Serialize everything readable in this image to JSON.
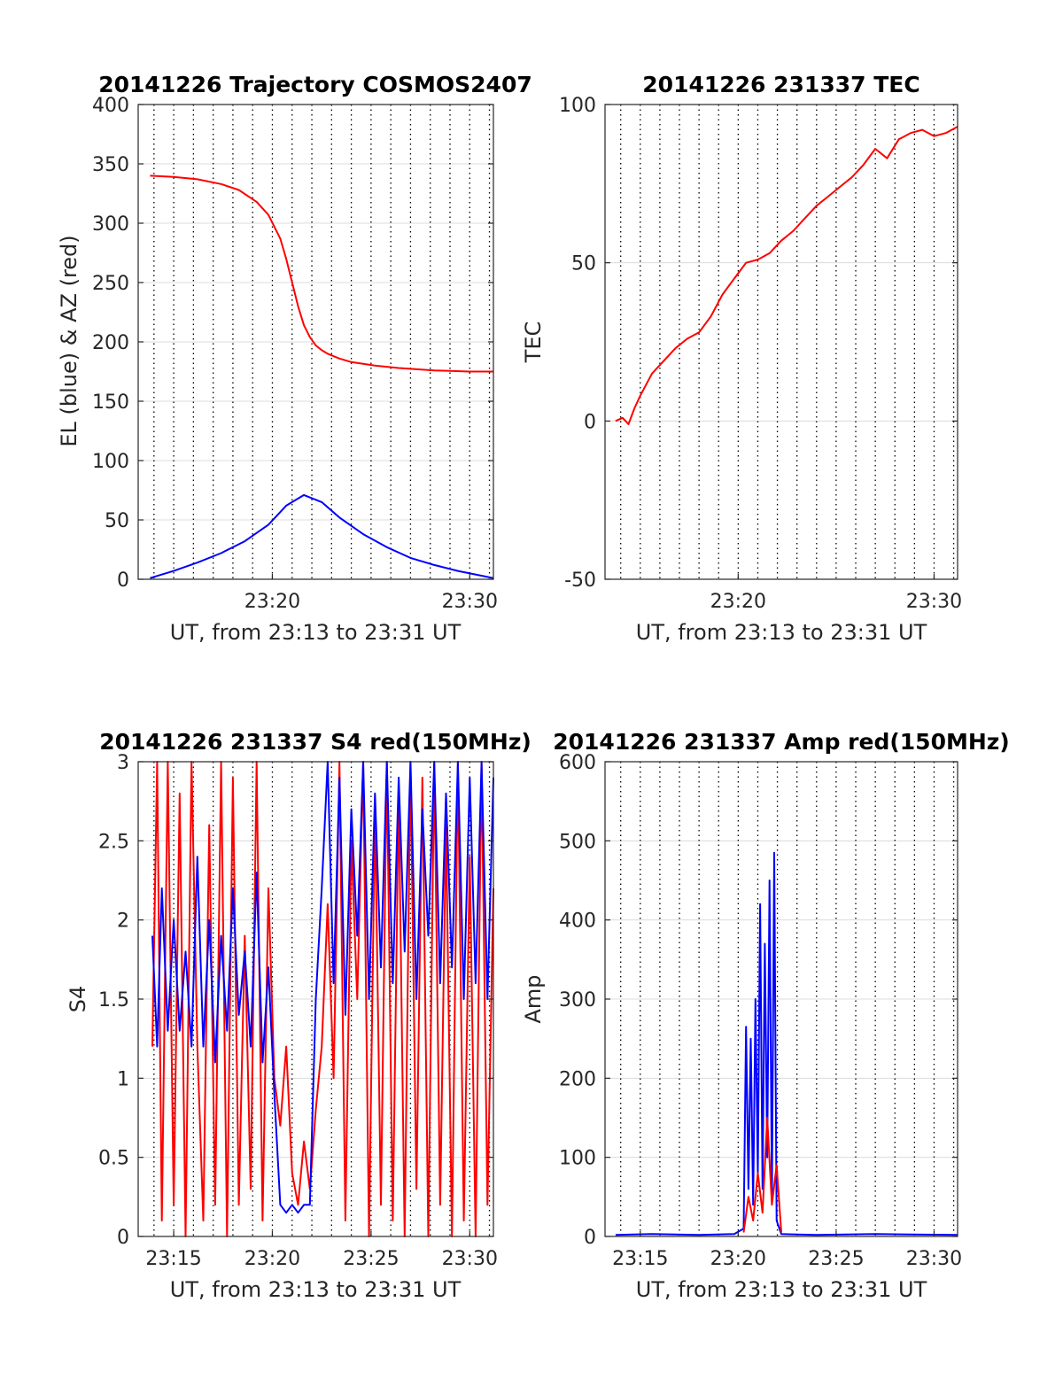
{
  "colors": {
    "el": "#0000ff",
    "az": "#ff0000",
    "grid": "#dcdcdc",
    "axis": "#262626"
  },
  "chart_data": [
    {
      "id": "trajectory",
      "type": "line",
      "title": "20141226 Trajectory COSMOS2407",
      "xlabel": "UT, from 23:13 to 23:31 UT",
      "ylabel": "EL (blue) & AZ (red)",
      "xlim": [
        23.22,
        23.52
      ],
      "ylim": [
        0,
        400
      ],
      "x_ticks": [
        {
          "v": 23.3333,
          "label": "23:20"
        },
        {
          "v": 23.5,
          "label": "23:30"
        }
      ],
      "y_ticks": [
        {
          "v": 0,
          "label": "0"
        },
        {
          "v": 50,
          "label": "50"
        },
        {
          "v": 100,
          "label": "100"
        },
        {
          "v": 150,
          "label": "150"
        },
        {
          "v": 200,
          "label": "200"
        },
        {
          "v": 250,
          "label": "250"
        },
        {
          "v": 300,
          "label": "300"
        },
        {
          "v": 350,
          "label": "350"
        },
        {
          "v": 400,
          "label": "400"
        }
      ],
      "grid": "dotted vertical every minute, light horizontal at y ticks",
      "series": [
        {
          "color": "#ff0000",
          "x": [
            23.23,
            23.25,
            23.27,
            23.29,
            23.305,
            23.32,
            23.33,
            23.34,
            23.345,
            23.35,
            23.355,
            23.36,
            23.365,
            23.37,
            23.375,
            23.38,
            23.39,
            23.4,
            23.42,
            23.44,
            23.47,
            23.5,
            23.52
          ],
          "y": [
            340,
            339,
            337,
            333,
            328,
            318,
            307,
            287,
            270,
            250,
            230,
            214,
            204,
            197,
            193,
            190,
            186,
            183,
            180,
            178,
            176,
            175,
            175
          ]
        },
        {
          "color": "#0000ff",
          "x": [
            23.23,
            23.25,
            23.27,
            23.29,
            23.31,
            23.33,
            23.345,
            23.36,
            23.375,
            23.39,
            23.41,
            23.43,
            23.45,
            23.47,
            23.49,
            23.51,
            23.52
          ],
          "y": [
            1,
            7,
            14,
            22,
            32,
            46,
            62,
            71,
            65,
            52,
            38,
            27,
            18,
            12,
            7,
            3,
            1
          ]
        }
      ]
    },
    {
      "id": "tec",
      "type": "line",
      "title": "20141226 231337 TEC",
      "xlabel": "UT, from 23:13 to 23:31 UT",
      "ylabel": "TEC",
      "xlim": [
        23.22,
        23.52
      ],
      "ylim": [
        -50,
        100
      ],
      "x_ticks": [
        {
          "v": 23.3333,
          "label": "23:20"
        },
        {
          "v": 23.5,
          "label": "23:30"
        }
      ],
      "y_ticks": [
        {
          "v": -50,
          "label": "-50"
        },
        {
          "v": 0,
          "label": "0"
        },
        {
          "v": 50,
          "label": "50"
        },
        {
          "v": 100,
          "label": "100"
        }
      ],
      "grid": "dotted vertical every minute, light horizontal at y ticks",
      "series": [
        {
          "color": "#ff0000",
          "x": [
            23.229,
            23.235,
            23.24,
            23.245,
            23.25,
            23.26,
            23.27,
            23.28,
            23.29,
            23.3,
            23.31,
            23.32,
            23.33,
            23.34,
            23.35,
            23.36,
            23.37,
            23.38,
            23.39,
            23.4,
            23.41,
            23.42,
            23.43,
            23.44,
            23.45,
            23.46,
            23.47,
            23.48,
            23.49,
            23.5,
            23.51,
            23.52
          ],
          "y": [
            0,
            1,
            -1,
            4,
            8,
            15,
            19,
            23,
            26,
            28,
            33,
            40,
            45,
            50,
            51,
            53,
            57,
            60,
            64,
            68,
            71,
            74,
            77,
            81,
            86,
            83,
            89,
            91,
            92,
            90,
            91,
            93
          ]
        }
      ]
    },
    {
      "id": "s4",
      "type": "line",
      "title": "20141226 231337 S4 red(150MHz)",
      "xlabel": "UT, from 23:13 to 23:31 UT",
      "ylabel": "S4",
      "xlim": [
        23.22,
        23.52
      ],
      "ylim": [
        0,
        3
      ],
      "x_ticks": [
        {
          "v": 23.25,
          "label": "23:15"
        },
        {
          "v": 23.3333,
          "label": "23:20"
        },
        {
          "v": 23.4167,
          "label": "23:25"
        },
        {
          "v": 23.5,
          "label": "23:30"
        }
      ],
      "y_ticks": [
        {
          "v": 0,
          "label": "0"
        },
        {
          "v": 0.5,
          "label": "0.5"
        },
        {
          "v": 1,
          "label": "1"
        },
        {
          "v": 1.5,
          "label": "1.5"
        },
        {
          "v": 2,
          "label": "2"
        },
        {
          "v": 2.5,
          "label": "2.5"
        },
        {
          "v": 3,
          "label": "3"
        }
      ],
      "grid": "dotted vertical every minute, light horizontal at y ticks",
      "series": [
        {
          "color": "#ff0000",
          "x": [
            23.232,
            23.236,
            23.24,
            23.245,
            23.25,
            23.255,
            23.26,
            23.265,
            23.27,
            23.275,
            23.28,
            23.285,
            23.29,
            23.295,
            23.3,
            23.305,
            23.31,
            23.315,
            23.32,
            23.325,
            23.33,
            23.335,
            23.34,
            23.345,
            23.35,
            23.355,
            23.36,
            23.365,
            23.37,
            23.375,
            23.38,
            23.385,
            23.39,
            23.395,
            23.4,
            23.405,
            23.41,
            23.415,
            23.42,
            23.425,
            23.43,
            23.435,
            23.44,
            23.445,
            23.45,
            23.455,
            23.46,
            23.465,
            23.47,
            23.475,
            23.48,
            23.485,
            23.49,
            23.495,
            23.5,
            23.505,
            23.51,
            23.515,
            23.52
          ],
          "y": [
            1.2,
            3.0,
            0.1,
            3.0,
            0.2,
            2.8,
            0.0,
            3.0,
            1.2,
            0.1,
            2.6,
            0.2,
            3.0,
            0.0,
            2.9,
            0.2,
            1.9,
            0.3,
            3.0,
            0.1,
            2.2,
            1.0,
            0.7,
            1.2,
            0.4,
            0.2,
            0.6,
            0.3,
            0.8,
            1.2,
            2.1,
            1.0,
            3.0,
            0.1,
            2.5,
            1.5,
            3.0,
            0.0,
            2.7,
            0.2,
            3.0,
            0.1,
            2.8,
            0.0,
            3.0,
            0.3,
            2.9,
            0.0,
            3.0,
            0.2,
            2.6,
            0.0,
            3.0,
            0.1,
            2.4,
            0.0,
            3.0,
            0.2,
            2.2
          ]
        },
        {
          "color": "#0000ff",
          "x": [
            23.232,
            23.236,
            23.24,
            23.245,
            23.25,
            23.255,
            23.26,
            23.265,
            23.27,
            23.275,
            23.28,
            23.285,
            23.29,
            23.295,
            23.3,
            23.305,
            23.31,
            23.315,
            23.32,
            23.325,
            23.33,
            23.335,
            23.34,
            23.345,
            23.35,
            23.355,
            23.36,
            23.365,
            23.37,
            23.375,
            23.38,
            23.385,
            23.39,
            23.395,
            23.4,
            23.405,
            23.41,
            23.415,
            23.42,
            23.425,
            23.43,
            23.435,
            23.44,
            23.445,
            23.45,
            23.455,
            23.46,
            23.465,
            23.47,
            23.475,
            23.48,
            23.485,
            23.49,
            23.495,
            23.5,
            23.505,
            23.51,
            23.515,
            23.52
          ],
          "y": [
            1.9,
            1.2,
            2.2,
            1.3,
            2.0,
            1.3,
            1.8,
            1.2,
            2.4,
            1.2,
            2.0,
            1.1,
            1.9,
            1.3,
            2.2,
            1.4,
            1.8,
            1.2,
            2.3,
            1.1,
            1.7,
            0.9,
            0.2,
            0.15,
            0.2,
            0.15,
            0.2,
            0.2,
            1.5,
            2.2,
            3.0,
            1.6,
            2.9,
            1.4,
            2.7,
            1.9,
            3.0,
            1.5,
            2.8,
            1.7,
            3.0,
            1.6,
            2.9,
            1.8,
            3.0,
            1.5,
            2.7,
            1.9,
            3.0,
            1.6,
            2.8,
            1.7,
            3.0,
            1.5,
            2.9,
            1.6,
            3.0,
            1.5,
            2.9
          ]
        }
      ]
    },
    {
      "id": "amp",
      "type": "line",
      "title": "20141226 231337 Amp red(150MHz)",
      "xlabel": "UT, from 23:13 to 23:31 UT",
      "ylabel": "Amp",
      "xlim": [
        23.22,
        23.52
      ],
      "ylim": [
        0,
        600
      ],
      "x_ticks": [
        {
          "v": 23.25,
          "label": "23:15"
        },
        {
          "v": 23.3333,
          "label": "23:20"
        },
        {
          "v": 23.4167,
          "label": "23:25"
        },
        {
          "v": 23.5,
          "label": "23:30"
        }
      ],
      "y_ticks": [
        {
          "v": 0,
          "label": "0"
        },
        {
          "v": 100,
          "label": "100"
        },
        {
          "v": 200,
          "label": "200"
        },
        {
          "v": 300,
          "label": "300"
        },
        {
          "v": 400,
          "label": "400"
        },
        {
          "v": 500,
          "label": "500"
        },
        {
          "v": 600,
          "label": "600"
        }
      ],
      "grid": "dotted vertical every minute, light horizontal at y ticks",
      "series": [
        {
          "color": "#0000ff",
          "x": [
            23.229,
            23.26,
            23.3,
            23.33,
            23.338,
            23.34,
            23.342,
            23.344,
            23.346,
            23.348,
            23.35,
            23.352,
            23.354,
            23.356,
            23.358,
            23.36,
            23.362,
            23.364,
            23.366,
            23.37,
            23.4,
            23.45,
            23.52
          ],
          "y": [
            2,
            3,
            2,
            3,
            10,
            265,
            60,
            250,
            40,
            300,
            80,
            420,
            60,
            370,
            100,
            450,
            50,
            485,
            20,
            3,
            2,
            3,
            2
          ]
        },
        {
          "color": "#ff0000",
          "x": [
            23.338,
            23.342,
            23.346,
            23.35,
            23.354,
            23.358,
            23.362,
            23.366,
            23.37
          ],
          "y": [
            5,
            50,
            20,
            80,
            30,
            150,
            40,
            90,
            5
          ]
        }
      ]
    }
  ]
}
